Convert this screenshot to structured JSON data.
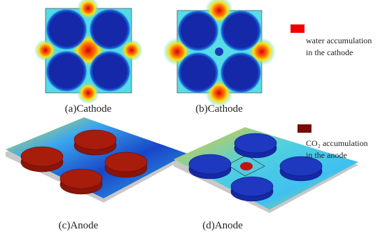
{
  "panels": [
    {
      "caption": "(a)Cathode"
    },
    {
      "caption": "(b)Cathode"
    },
    {
      "caption": "(c)Anode"
    },
    {
      "caption": "(d)Anode"
    }
  ],
  "legend": [
    {
      "lines": [
        "water accumulation",
        "in the cathode"
      ]
    },
    {
      "lines": [
        "CO₂ accumulation",
        "in the anode"
      ]
    }
  ]
}
